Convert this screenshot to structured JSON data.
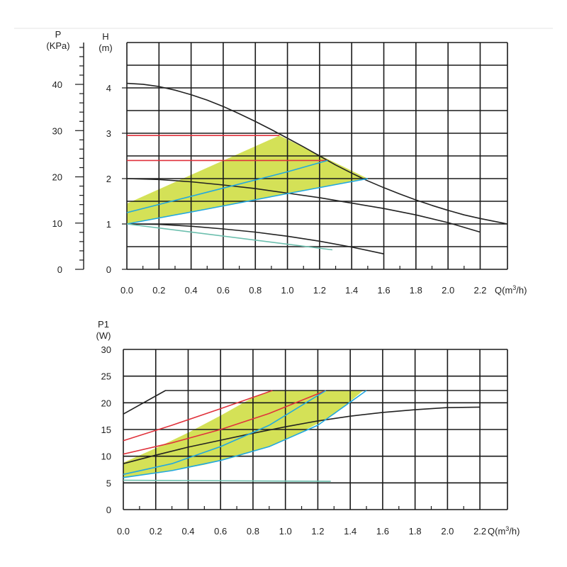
{
  "colors": {
    "grid": "#1a1a1a",
    "curve_black": "#222222",
    "curve_red": "#e0323c",
    "curve_blue": "#22a8e0",
    "curve_teal": "#6cbfae",
    "zone_fill": "#d4e157"
  },
  "chart_data": [
    {
      "type": "line",
      "title": "",
      "xlabel": "Q(m³/h)",
      "xlabel_main": "Q(m",
      "xlabel_sup": "3",
      "xlabel_tail": "/h)",
      "ylabel": "H (m)",
      "ylabel_line1": "H",
      "ylabel_line2": "(m)",
      "y2label": "P (KPa)",
      "y2label_line1": "P",
      "y2label_line2": "(KPa)",
      "xlim": [
        0,
        2.37
      ],
      "ylim": [
        0,
        5
      ],
      "x_ticks": [
        0.0,
        0.2,
        0.4,
        0.6,
        0.8,
        1.0,
        1.2,
        1.4,
        1.6,
        1.8,
        2.0,
        2.2
      ],
      "x_tick_labels": [
        "0.0",
        "0.2",
        "0.4",
        "0.6",
        "0.8",
        "1.0",
        "1.2",
        "1.4",
        "1.6",
        "1.8",
        "2.0",
        "2.2"
      ],
      "y_ticks": [
        0,
        1,
        2,
        3,
        4
      ],
      "y_tick_labels": [
        "0",
        "1",
        "2",
        "3",
        "4"
      ],
      "y2_ticks": [
        0,
        10,
        20,
        30,
        40
      ],
      "y2_tick_labels": [
        "0",
        "10",
        "20",
        "30",
        "40"
      ],
      "grid": true,
      "zone": [
        [
          0,
          1.0
        ],
        [
          0,
          1.45
        ],
        [
          0.95,
          2.95
        ],
        [
          1.5,
          2.0
        ]
      ],
      "series": [
        {
          "color": "curve_black",
          "x": [
            0,
            0.1,
            0.2,
            0.3,
            0.4,
            0.5,
            0.6,
            0.7,
            0.8,
            0.9,
            1.0,
            1.1,
            1.2,
            1.3,
            1.4,
            1.5,
            1.6,
            1.7,
            1.8,
            1.9,
            2.0,
            2.1,
            2.2,
            2.3,
            2.37
          ],
          "y": [
            4.1,
            4.08,
            4.03,
            3.95,
            3.85,
            3.73,
            3.59,
            3.43,
            3.26,
            3.08,
            2.89,
            2.7,
            2.5,
            2.3,
            2.12,
            1.95,
            1.8,
            1.66,
            1.53,
            1.41,
            1.3,
            1.2,
            1.12,
            1.05,
            1.0
          ]
        },
        {
          "color": "curve_black",
          "x": [
            0,
            0.2,
            0.4,
            0.6,
            0.8,
            1.0,
            1.2,
            1.4,
            1.6,
            1.8,
            2.0,
            2.2
          ],
          "y": [
            2.0,
            1.98,
            1.93,
            1.86,
            1.78,
            1.68,
            1.58,
            1.46,
            1.34,
            1.2,
            1.03,
            0.82
          ]
        },
        {
          "color": "curve_black",
          "x": [
            0,
            0.2,
            0.4,
            0.6,
            0.8,
            1.0,
            1.2,
            1.4,
            1.6
          ],
          "y": [
            1.0,
            0.99,
            0.95,
            0.89,
            0.82,
            0.73,
            0.62,
            0.49,
            0.34
          ]
        },
        {
          "color": "curve_red",
          "x": [
            0,
            0.95
          ],
          "y": [
            2.95,
            2.95
          ]
        },
        {
          "color": "curve_red",
          "x": [
            0,
            1.25
          ],
          "y": [
            2.4,
            2.4
          ]
        },
        {
          "color": "curve_blue",
          "x": [
            0,
            0.5,
            1.0,
            1.25
          ],
          "y": [
            1.25,
            1.7,
            2.15,
            2.4
          ]
        },
        {
          "color": "curve_blue",
          "x": [
            0,
            0.5,
            1.0,
            1.5
          ],
          "y": [
            1.0,
            1.33,
            1.67,
            2.0
          ]
        },
        {
          "color": "curve_teal",
          "x": [
            0,
            1.28
          ],
          "y": [
            1.0,
            0.43
          ]
        }
      ]
    },
    {
      "type": "line",
      "title": "",
      "xlabel": "Q(m³/h)",
      "xlabel_main": "Q(m",
      "xlabel_sup": "3",
      "xlabel_tail": "/h)",
      "ylabel": "P1 (W)",
      "ylabel_line1": "P1",
      "ylabel_line2": "(W)",
      "xlim": [
        0,
        2.37
      ],
      "ylim": [
        0,
        30
      ],
      "x_ticks": [
        0.0,
        0.2,
        0.4,
        0.6,
        0.8,
        1.0,
        1.2,
        1.4,
        1.6,
        1.8,
        2.0,
        2.2
      ],
      "x_tick_labels": [
        "0.0",
        "0.2",
        "0.4",
        "0.6",
        "0.8",
        "1.0",
        "1.2",
        "1.4",
        "1.6",
        "1.8",
        "2.0",
        "2.2"
      ],
      "y_ticks": [
        0,
        5,
        10,
        15,
        20,
        25,
        30
      ],
      "y_tick_labels": [
        "0",
        "5",
        "10",
        "15",
        "20",
        "25",
        "30"
      ],
      "grid": true,
      "zone": [
        [
          0,
          6.0
        ],
        [
          0,
          8.8
        ],
        [
          0.2,
          11.5
        ],
        [
          0.4,
          14.4
        ],
        [
          0.6,
          17.6
        ],
        [
          0.8,
          21.0
        ],
        [
          0.92,
          22.3
        ],
        [
          1.48,
          22.3
        ],
        [
          1.3,
          17.8
        ],
        [
          1.1,
          14.5
        ],
        [
          0.9,
          11.8
        ],
        [
          0.7,
          9.9
        ],
        [
          0.5,
          8.4
        ],
        [
          0.3,
          7.3
        ],
        [
          0.1,
          6.4
        ]
      ],
      "series": [
        {
          "color": "curve_black",
          "x": [
            0,
            0.26,
            2.37
          ],
          "y": [
            17.9,
            22.3,
            22.3
          ]
        },
        {
          "color": "curve_black",
          "x": [
            0,
            0.2,
            0.4,
            0.6,
            0.8,
            1.0,
            1.2,
            1.4,
            1.6,
            1.8,
            2.0,
            2.2
          ],
          "y": [
            8.6,
            10.2,
            11.7,
            13.0,
            14.3,
            15.5,
            16.6,
            17.5,
            18.2,
            18.7,
            19.1,
            19.2
          ]
        },
        {
          "color": "curve_red",
          "x": [
            0,
            0.3,
            0.6,
            0.92
          ],
          "y": [
            12.9,
            15.8,
            18.9,
            22.3
          ]
        },
        {
          "color": "curve_red",
          "x": [
            0,
            0.3,
            0.6,
            0.9,
            1.25
          ],
          "y": [
            10.4,
            12.5,
            15.0,
            18.0,
            22.3
          ]
        },
        {
          "color": "curve_blue",
          "x": [
            0,
            0.3,
            0.6,
            0.9,
            1.25
          ],
          "y": [
            6.6,
            8.6,
            11.8,
            15.8,
            22.3
          ]
        },
        {
          "color": "curve_blue",
          "x": [
            0,
            0.3,
            0.6,
            0.9,
            1.2,
            1.5
          ],
          "y": [
            6.0,
            7.3,
            9.2,
            11.8,
            15.8,
            22.3
          ]
        },
        {
          "color": "curve_teal",
          "x": [
            0,
            1.28
          ],
          "y": [
            5.5,
            5.3
          ]
        }
      ]
    }
  ]
}
